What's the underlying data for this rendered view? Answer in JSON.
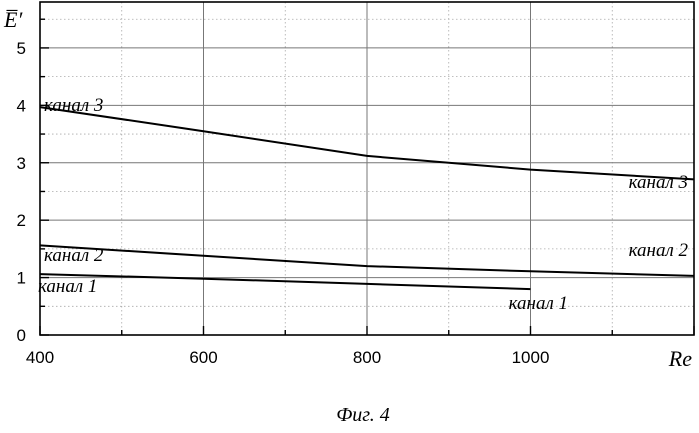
{
  "chart_data": {
    "type": "line",
    "title": "",
    "xlabel": "Re",
    "ylabel": "E̅′",
    "xlim": [
      400,
      1200
    ],
    "ylim": [
      0,
      5.8
    ],
    "x_ticks": [
      400,
      600,
      800,
      1000
    ],
    "y_ticks": [
      0,
      1,
      2,
      3,
      4,
      5
    ],
    "grid": true,
    "caption": "Фиг. 4",
    "series": [
      {
        "name": "канал 1",
        "x": [
          400,
          600,
          800,
          1000
        ],
        "y": [
          1.06,
          0.98,
          0.89,
          0.8
        ]
      },
      {
        "name": "канал 2",
        "x": [
          400,
          600,
          800,
          1000,
          1200
        ],
        "y": [
          1.56,
          1.38,
          1.2,
          1.11,
          1.03
        ]
      },
      {
        "name": "канал 3",
        "x": [
          400,
          600,
          800,
          1000,
          1200
        ],
        "y": [
          3.97,
          3.55,
          3.12,
          2.88,
          2.71
        ]
      }
    ]
  }
}
